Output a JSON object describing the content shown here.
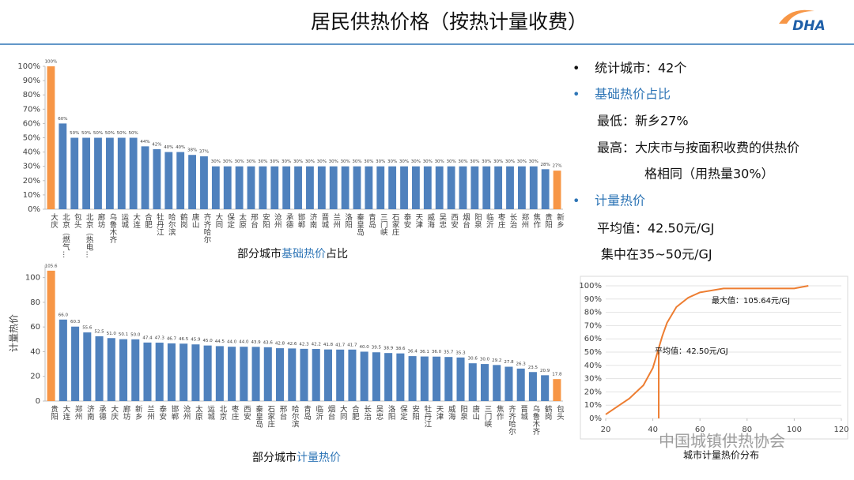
{
  "header": {
    "title": "居民供热价格（按热计量收费）",
    "logo": "DHA"
  },
  "summary": {
    "bullets": [
      "统计城市：42个",
      "基础热价占比",
      "计量热价"
    ],
    "base_lines": [
      "最低：新乡27%",
      "最高：大庆市与按面积收费的供热价",
      "格相同（用热量30%）"
    ],
    "metered_lines": [
      "平均值：42.50元/GJ",
      "集中在35~50元/GJ"
    ]
  },
  "watermark": "中国城镇供热协会",
  "chart_data": [
    {
      "type": "bar",
      "caption": [
        "部分城市",
        "基础热价",
        "占比"
      ],
      "categories": [
        "大庆",
        "北京（燃气…",
        "包头",
        "北京（热电…",
        "廊坊",
        "乌鲁木齐",
        "运城",
        "大连",
        "合肥",
        "牡丹江",
        "哈尔滨",
        "鹤岗",
        "唐山",
        "齐齐哈尔",
        "大同",
        "保定",
        "太原",
        "邢台",
        "安阳",
        "沧州",
        "承德",
        "邯郸",
        "济南",
        "晋城",
        "兰州",
        "洛阳",
        "秦皇岛",
        "青岛",
        "三门峡",
        "石家庄",
        "泰安",
        "天津",
        "威海",
        "吴忠",
        "西安",
        "烟台",
        "阳泉",
        "临沂",
        "枣庄",
        "长治",
        "郑州",
        "焦作",
        "贵阳",
        "新乡"
      ],
      "values": [
        100,
        60,
        50,
        50,
        50,
        50,
        50,
        50,
        44,
        42,
        40,
        40,
        38,
        37,
        30,
        30,
        30,
        30,
        30,
        30,
        30,
        30,
        30,
        30,
        30,
        30,
        30,
        30,
        30,
        30,
        30,
        30,
        30,
        30,
        30,
        30,
        30,
        30,
        30,
        30,
        30,
        30,
        28,
        27
      ],
      "value_labels": [
        "100%",
        "60%",
        "50%",
        "50%",
        "50%",
        "50%",
        "50%",
        "50%",
        "44%",
        "42%",
        "40%",
        "40%",
        "38%",
        "37%",
        "30%",
        "30%",
        "30%",
        "30%",
        "30%",
        "30%",
        "30%",
        "30%",
        "30%",
        "30%",
        "30%",
        "30%",
        "30%",
        "30%",
        "30%",
        "30%",
        "30%",
        "30%",
        "30%",
        "30%",
        "30%",
        "30%",
        "30%",
        "30%",
        "30%",
        "30%",
        "30%",
        "30%",
        "28%",
        "27%"
      ],
      "colors": [
        "#f79646",
        "#4f81bd",
        "#4f81bd",
        "#4f81bd",
        "#4f81bd",
        "#4f81bd",
        "#4f81bd",
        "#4f81bd",
        "#4f81bd",
        "#4f81bd",
        "#4f81bd",
        "#4f81bd",
        "#4f81bd",
        "#4f81bd",
        "#4f81bd",
        "#4f81bd",
        "#4f81bd",
        "#4f81bd",
        "#4f81bd",
        "#4f81bd",
        "#4f81bd",
        "#4f81bd",
        "#4f81bd",
        "#4f81bd",
        "#4f81bd",
        "#4f81bd",
        "#4f81bd",
        "#4f81bd",
        "#4f81bd",
        "#4f81bd",
        "#4f81bd",
        "#4f81bd",
        "#4f81bd",
        "#4f81bd",
        "#4f81bd",
        "#4f81bd",
        "#4f81bd",
        "#4f81bd",
        "#4f81bd",
        "#4f81bd",
        "#4f81bd",
        "#4f81bd",
        "#4f81bd",
        "#f79646"
      ],
      "ylim": [
        0,
        100
      ],
      "yticks": [
        {
          "value": 0,
          "label": "0%"
        },
        {
          "value": 10,
          "label": "10%"
        },
        {
          "value": 20,
          "label": "20%"
        },
        {
          "value": 30,
          "label": "30%"
        },
        {
          "value": 40,
          "label": "40%"
        },
        {
          "value": 50,
          "label": "50%"
        },
        {
          "value": 60,
          "label": "60%"
        },
        {
          "value": 70,
          "label": "70%"
        },
        {
          "value": 80,
          "label": "80%"
        },
        {
          "value": 90,
          "label": "90%"
        },
        {
          "value": 100,
          "label": "100%"
        }
      ]
    },
    {
      "type": "bar",
      "caption": [
        "部分城市",
        "计量热价",
        ""
      ],
      "y_label": "计量热价",
      "categories": [
        "贵阳",
        "大连",
        "郑州",
        "济南",
        "承德",
        "大庆",
        "廊坊",
        "新乡",
        "兰州",
        "泰安",
        "邯郸",
        "沧州",
        "太原",
        "运城",
        "北京",
        "枣庄",
        "西安",
        "秦皇岛",
        "石家庄",
        "邢台",
        "哈尔滨",
        "青岛",
        "临沂",
        "烟台",
        "大同",
        "合肥",
        "长治",
        "吴忠",
        "洛阳",
        "保定",
        "安阳",
        "牡丹江",
        "天津",
        "威海",
        "阳泉",
        "唐山",
        "三门峡",
        "焦作",
        "齐齐哈尔",
        "晋城",
        "乌鲁木齐",
        "鹤岗",
        "包头"
      ],
      "values": [
        105.6,
        66,
        60.3,
        55.6,
        52.5,
        51,
        50.1,
        50,
        47.4,
        47.3,
        46.7,
        46.5,
        45.9,
        45,
        44.5,
        44,
        44,
        43.9,
        43.6,
        42.8,
        42.6,
        42.3,
        42.2,
        41.8,
        41.7,
        41.7,
        40,
        39.5,
        38.9,
        38.6,
        36.4,
        36.1,
        36,
        35.7,
        35.3,
        30.6,
        30,
        29.2,
        27.8,
        26.3,
        23.5,
        20.9,
        17.8
      ],
      "value_labels": [
        "105.6",
        "66.0",
        "60.3",
        "55.6",
        "52.5",
        "51.0",
        "50.1",
        "50.0",
        "47.4",
        "47.3",
        "46.7",
        "46.5",
        "45.9",
        "45.0",
        "44.5",
        "44.0",
        "44.0",
        "43.9",
        "43.6",
        "42.8",
        "42.6",
        "42.3",
        "42.2",
        "41.8",
        "41.7",
        "41.7",
        "40.0",
        "39.5",
        "38.9",
        "38.6",
        "36.4",
        "36.1",
        "36.0",
        "35.7",
        "35.3",
        "30.6",
        "30.0",
        "29.2",
        "27.8",
        "26.3",
        "23.5",
        "20.9",
        "17.8"
      ],
      "colors": [
        "#f79646",
        "#4f81bd",
        "#4f81bd",
        "#4f81bd",
        "#4f81bd",
        "#4f81bd",
        "#4f81bd",
        "#4f81bd",
        "#4f81bd",
        "#4f81bd",
        "#4f81bd",
        "#4f81bd",
        "#4f81bd",
        "#4f81bd",
        "#4f81bd",
        "#4f81bd",
        "#4f81bd",
        "#4f81bd",
        "#4f81bd",
        "#4f81bd",
        "#4f81bd",
        "#4f81bd",
        "#4f81bd",
        "#4f81bd",
        "#4f81bd",
        "#4f81bd",
        "#4f81bd",
        "#4f81bd",
        "#4f81bd",
        "#4f81bd",
        "#4f81bd",
        "#4f81bd",
        "#4f81bd",
        "#4f81bd",
        "#4f81bd",
        "#4f81bd",
        "#4f81bd",
        "#4f81bd",
        "#4f81bd",
        "#4f81bd",
        "#4f81bd",
        "#4f81bd",
        "#f79646"
      ],
      "ylim": [
        0,
        110
      ],
      "yticks": [
        0,
        20,
        40,
        60,
        80,
        100
      ]
    },
    {
      "type": "line",
      "title": "城市计量热价分布",
      "x": [
        20,
        30,
        36,
        40,
        42,
        44,
        46,
        50,
        55,
        60,
        70,
        80,
        90,
        100,
        106
      ],
      "series": [
        {
          "color": "#ed7d31",
          "values": [
            3,
            15,
            25,
            38,
            50,
            62,
            72,
            84,
            91,
            95,
            98,
            98,
            98,
            98,
            100
          ]
        }
      ],
      "vline": 42.5,
      "annotations": [
        "最大值：105.64元/GJ",
        "平均值：42.50元/GJ"
      ],
      "xlim": [
        20,
        120
      ],
      "xticks": [
        20,
        40,
        60,
        80,
        100,
        120
      ],
      "ylim": [
        0,
        100
      ],
      "yticks": [
        {
          "value": 0,
          "label": "0%"
        },
        {
          "value": 10,
          "label": "10%"
        },
        {
          "value": 20,
          "label": "20%"
        },
        {
          "value": 30,
          "label": "30%"
        },
        {
          "value": 40,
          "label": "40%"
        },
        {
          "value": 50,
          "label": "50%"
        },
        {
          "value": 60,
          "label": "60%"
        },
        {
          "value": 70,
          "label": "70%"
        },
        {
          "value": 80,
          "label": "80%"
        },
        {
          "value": 90,
          "label": "90%"
        },
        {
          "value": 100,
          "label": "100%"
        }
      ],
      "grid": true
    }
  ]
}
